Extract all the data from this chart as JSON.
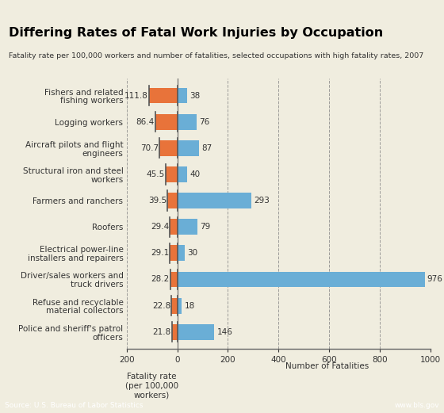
{
  "title": "Differing Rates of Fatal Work Injuries by Occupation",
  "subtitle": "Fatality rate per 100,000 workers and number of fatalities, selected occupations with high fatality rates, 2007",
  "occupations": [
    "Fishers and related\nfishing workers",
    "Logging workers",
    "Aircraft pilots and flight\nengineers",
    "Structural iron and steel\nworkers",
    "Farmers and ranchers",
    "Roofers",
    "Electrical power-line\ninstallers and repairers",
    "Driver/sales workers and\ntruck drivers",
    "Refuse and recyclable\nmaterial collectors",
    "Police and sheriff's patrol\nofficers"
  ],
  "fatality_rates": [
    111.8,
    86.4,
    70.7,
    45.5,
    39.5,
    29.4,
    29.1,
    28.2,
    22.8,
    21.8
  ],
  "num_fatalities": [
    38,
    76,
    87,
    40,
    293,
    79,
    30,
    976,
    18,
    146
  ],
  "rate_color": "#E8733A",
  "fatality_color": "#6aaed6",
  "fatality_color_dark": "#2171b5",
  "bar_height": 0.6,
  "xlim_left": -200,
  "xlim_right": 1000,
  "xlabel_left": "Fatality rate\n(per 100,000\nworkers)",
  "xlabel_right": "Number of Fatalities",
  "source_text": "Source: U.S. Bureau of Labor Statistics",
  "website_text": "www.bls.gov",
  "background_color": "#F0EDDF",
  "title_bar_color": "#1A4A9A",
  "title_text_color": "#000000",
  "footer_color": "#4472C4"
}
